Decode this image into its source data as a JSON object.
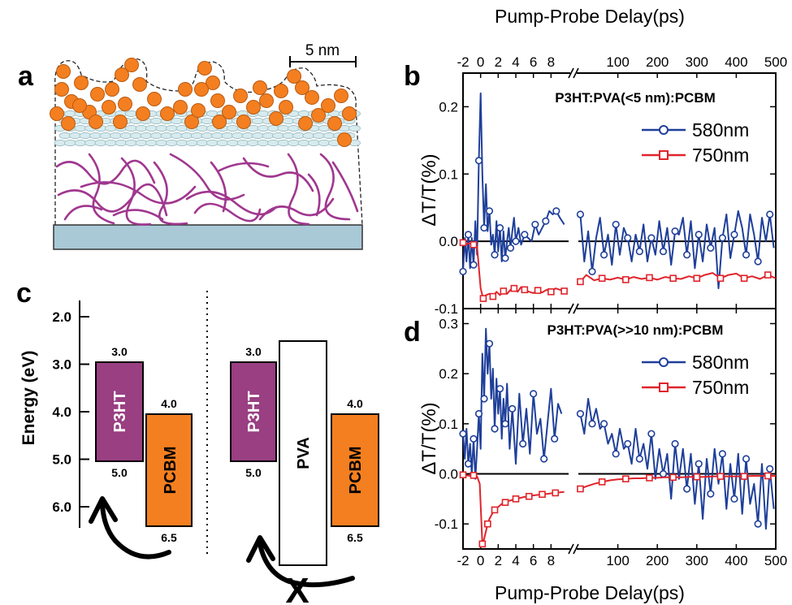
{
  "panel_labels": {
    "a": "a",
    "b": "b",
    "c": "c",
    "d": "d"
  },
  "panel_a": {
    "scale_bar": "5 nm"
  },
  "panel_c": {
    "ylabel": "Energy (eV)",
    "yticks": [
      "2.0",
      "3.0",
      "4.0",
      "5.0",
      "6.0"
    ],
    "left": {
      "p3ht": {
        "label": "P3HT",
        "lumo": "3.0",
        "homo": "5.0"
      },
      "pcbm": {
        "label": "PCBM",
        "lumo": "4.0",
        "homo": "6.5"
      }
    },
    "right": {
      "p3ht": {
        "label": "P3HT",
        "lumo": "3.0",
        "homo": "5.0"
      },
      "pva": {
        "label": "PVA"
      },
      "pcbm": {
        "label": "PCBM",
        "lumo": "4.0",
        "homo": "6.5"
      }
    },
    "blocked_mark": "X",
    "colors": {
      "p3ht": "#993f82",
      "pcbm": "#f47f20",
      "pva": "#ffffff"
    }
  },
  "shared": {
    "top_xlabel": "Pump-Probe Delay(ps)",
    "bottom_xlabel": "Pump-Probe Delay(ps)",
    "ylabel": "ΔT/T(%)",
    "xticks_left": [
      "-2",
      "0",
      "2",
      "4",
      "6",
      "8"
    ],
    "xticks_right": [
      "100",
      "200",
      "300",
      "400",
      "500"
    ],
    "colors": {
      "580nm": "#1f3f9a",
      "750nm": "#e0242b"
    }
  },
  "chart_data": [
    {
      "panel": "b",
      "type": "line",
      "title": "P3HT:PVA(<5 nm):PCBM",
      "xlabel": "Pump-Probe Delay(ps)",
      "ylabel": "ΔT/T(%)",
      "xlim_left": [
        -2,
        10
      ],
      "xlim_right": [
        0,
        500
      ],
      "ylim": [
        -0.1,
        0.25
      ],
      "yticks": [
        "-0.1",
        "0.0",
        "0.1",
        "0.2"
      ],
      "legend": "top-right",
      "series": [
        {
          "name": "580nm",
          "marker": "circle",
          "left": {
            "x": [
              -2.0,
              -1.8,
              -1.6,
              -1.4,
              -1.2,
              -1.0,
              -0.8,
              -0.6,
              -0.4,
              -0.2,
              0.0,
              0.2,
              0.4,
              0.6,
              0.8,
              1.0,
              1.2,
              1.4,
              1.6,
              1.8,
              2.0,
              2.2,
              2.4,
              2.6,
              2.8,
              3.0,
              3.2,
              3.4,
              3.6,
              3.8,
              4.0,
              4.3,
              4.6,
              5.0,
              5.4,
              5.8,
              6.2,
              6.6,
              7.0,
              7.4,
              7.8,
              8.2,
              8.6,
              9.0,
              9.5
            ],
            "y": [
              -0.045,
              0.005,
              -0.03,
              0.01,
              -0.04,
              0.005,
              -0.035,
              0.03,
              -0.02,
              0.12,
              0.22,
              0.1,
              0.02,
              0.085,
              0.015,
              0.045,
              -0.005,
              0.01,
              -0.02,
              0.03,
              -0.015,
              0.02,
              -0.03,
              0.015,
              -0.025,
              0.0,
              0.02,
              -0.01,
              0.015,
              0.035,
              0.0,
              0.02,
              -0.005,
              0.01,
              0.005,
              0.0,
              0.025,
              0.01,
              0.02,
              0.03,
              0.045,
              0.04,
              0.045,
              0.035,
              0.025
            ]
          },
          "right": {
            "x": [
              5,
              15,
              25,
              35,
              45,
              55,
              65,
              75,
              85,
              95,
              105,
              115,
              125,
              135,
              145,
              155,
              165,
              175,
              185,
              195,
              205,
              215,
              225,
              235,
              245,
              255,
              265,
              275,
              285,
              295,
              305,
              315,
              325,
              335,
              345,
              355,
              365,
              375,
              385,
              395,
              405,
              415,
              425,
              435,
              445,
              455,
              465,
              475,
              485,
              495
            ],
            "y": [
              0.04,
              -0.03,
              0.015,
              -0.045,
              0.005,
              0.035,
              -0.02,
              0.01,
              -0.035,
              0.025,
              -0.02,
              0.02,
              0.005,
              -0.03,
              0.01,
              -0.015,
              0.025,
              -0.03,
              0.005,
              -0.02,
              0.03,
              -0.015,
              0.02,
              -0.035,
              0.015,
              0.01,
              0.035,
              -0.02,
              0.03,
              -0.04,
              0.01,
              -0.03,
              0.025,
              -0.01,
              0.02,
              -0.07,
              0.005,
              0.04,
              -0.025,
              0.01,
              0.045,
              0.02,
              -0.02,
              0.04,
              0.01,
              -0.03,
              0.035,
              0.0,
              0.04,
              -0.01
            ]
          }
        },
        {
          "name": "750nm",
          "marker": "square",
          "left": {
            "x": [
              -2.0,
              -1.6,
              -1.2,
              -0.8,
              -0.4,
              0.0,
              0.3,
              0.6,
              1.0,
              1.4,
              1.8,
              2.2,
              2.6,
              3.0,
              3.4,
              3.8,
              4.2,
              4.6,
              5.0,
              5.5,
              6.0,
              6.5,
              7.0,
              7.5,
              8.0,
              8.5,
              9.0,
              9.5
            ],
            "y": [
              -0.002,
              -0.004,
              -0.003,
              -0.005,
              -0.008,
              -0.07,
              -0.085,
              -0.08,
              -0.078,
              -0.082,
              -0.075,
              -0.08,
              -0.074,
              -0.078,
              -0.072,
              -0.07,
              -0.075,
              -0.068,
              -0.072,
              -0.075,
              -0.077,
              -0.073,
              -0.076,
              -0.072,
              -0.075,
              -0.07,
              -0.072,
              -0.074
            ]
          },
          "right": {
            "x": [
              5,
              20,
              40,
              60,
              80,
              100,
              120,
              140,
              160,
              180,
              200,
              220,
              240,
              260,
              280,
              300,
              320,
              340,
              360,
              380,
              400,
              420,
              440,
              460,
              480,
              500
            ],
            "y": [
              -0.06,
              -0.05,
              -0.058,
              -0.055,
              -0.057,
              -0.054,
              -0.057,
              -0.053,
              -0.056,
              -0.054,
              -0.057,
              -0.053,
              -0.055,
              -0.056,
              -0.052,
              -0.055,
              -0.05,
              -0.047,
              -0.055,
              -0.05,
              -0.048,
              -0.055,
              -0.052,
              -0.056,
              -0.05,
              -0.055
            ]
          }
        }
      ]
    },
    {
      "panel": "d",
      "type": "line",
      "title": "P3HT:PVA(>>10 nm):PCBM",
      "xlabel": "Pump-Probe Delay(ps)",
      "ylabel": "ΔT/T(%)",
      "xlim_left": [
        -2,
        10
      ],
      "xlim_right": [
        0,
        500
      ],
      "ylim": [
        -0.15,
        0.33
      ],
      "yticks": [
        "-0.1",
        "0.0",
        "0.1",
        "0.2",
        "0.3"
      ],
      "legend": "top-right",
      "series": [
        {
          "name": "580nm",
          "marker": "circle",
          "left": {
            "x": [
              -2.0,
              -1.8,
              -1.6,
              -1.4,
              -1.2,
              -1.0,
              -0.8,
              -0.6,
              -0.4,
              -0.2,
              0.0,
              0.2,
              0.4,
              0.6,
              0.8,
              1.0,
              1.2,
              1.4,
              1.6,
              1.8,
              2.0,
              2.2,
              2.4,
              2.6,
              2.8,
              3.0,
              3.3,
              3.6,
              4.0,
              4.4,
              4.8,
              5.2,
              5.6,
              6.0,
              6.4,
              6.8,
              7.2,
              7.6,
              8.0,
              8.4,
              8.8,
              9.2
            ],
            "y": [
              0.08,
              0.03,
              0.09,
              0.02,
              0.06,
              0.0,
              0.07,
              -0.01,
              0.05,
              0.12,
              0.05,
              0.24,
              0.15,
              0.29,
              0.2,
              0.26,
              0.15,
              0.21,
              0.09,
              0.19,
              0.12,
              0.17,
              0.07,
              0.15,
              0.1,
              0.18,
              0.05,
              0.13,
              0.02,
              0.16,
              0.06,
              0.13,
              0.04,
              0.16,
              0.08,
              0.11,
              0.03,
              0.1,
              0.17,
              0.07,
              0.14,
              0.12
            ]
          },
          "right": {
            "x": [
              5,
              15,
              25,
              35,
              45,
              55,
              65,
              75,
              85,
              95,
              105,
              115,
              125,
              135,
              145,
              155,
              165,
              175,
              185,
              195,
              205,
              215,
              225,
              235,
              245,
              255,
              265,
              275,
              285,
              295,
              305,
              315,
              325,
              335,
              345,
              355,
              365,
              375,
              385,
              395,
              405,
              415,
              425,
              435,
              445,
              455,
              465,
              475,
              485,
              495
            ],
            "y": [
              0.12,
              0.08,
              0.15,
              0.1,
              0.13,
              0.09,
              0.1,
              0.06,
              0.08,
              0.04,
              0.09,
              0.05,
              0.06,
              0.02,
              0.09,
              0.03,
              0.06,
              0.01,
              0.08,
              -0.01,
              0.05,
              0.0,
              0.04,
              -0.05,
              0.06,
              -0.01,
              0.05,
              -0.03,
              0.04,
              -0.06,
              0.02,
              -0.09,
              0.03,
              -0.04,
              0.05,
              -0.02,
              0.04,
              -0.07,
              0.02,
              -0.05,
              0.04,
              -0.08,
              0.03,
              -0.06,
              -0.02,
              -0.1,
              0.02,
              -0.11,
              0.01,
              -0.07
            ]
          }
        },
        {
          "name": "750nm",
          "marker": "square",
          "left": {
            "x": [
              -2.0,
              -1.6,
              -1.2,
              -0.8,
              -0.4,
              -0.1,
              0.2,
              0.4,
              0.6,
              0.8,
              1.0,
              1.3,
              1.6,
              2.0,
              2.4,
              2.8,
              3.2,
              3.6,
              4.0,
              4.5,
              5.0,
              5.5,
              6.0,
              6.5,
              7.0,
              7.5,
              8.0,
              8.5,
              9.0,
              9.5
            ],
            "y": [
              -0.002,
              -0.003,
              -0.004,
              -0.003,
              -0.005,
              -0.02,
              -0.14,
              -0.13,
              -0.115,
              -0.1,
              -0.09,
              -0.08,
              -0.072,
              -0.066,
              -0.06,
              -0.057,
              -0.054,
              -0.052,
              -0.05,
              -0.048,
              -0.046,
              -0.045,
              -0.043,
              -0.042,
              -0.041,
              -0.04,
              -0.039,
              -0.038,
              -0.037,
              -0.036
            ]
          },
          "right": {
            "x": [
              5,
              20,
              40,
              60,
              80,
              100,
              120,
              140,
              160,
              180,
              200,
              220,
              240,
              260,
              280,
              300,
              320,
              340,
              360,
              380,
              400,
              420,
              440,
              460,
              480,
              500
            ],
            "y": [
              -0.03,
              -0.025,
              -0.02,
              -0.016,
              -0.013,
              -0.011,
              -0.01,
              -0.009,
              -0.009,
              -0.008,
              -0.008,
              -0.007,
              -0.007,
              -0.007,
              -0.006,
              -0.006,
              -0.006,
              -0.005,
              -0.005,
              -0.005,
              -0.005,
              -0.005,
              -0.004,
              -0.004,
              -0.004,
              -0.004
            ]
          }
        }
      ]
    }
  ]
}
